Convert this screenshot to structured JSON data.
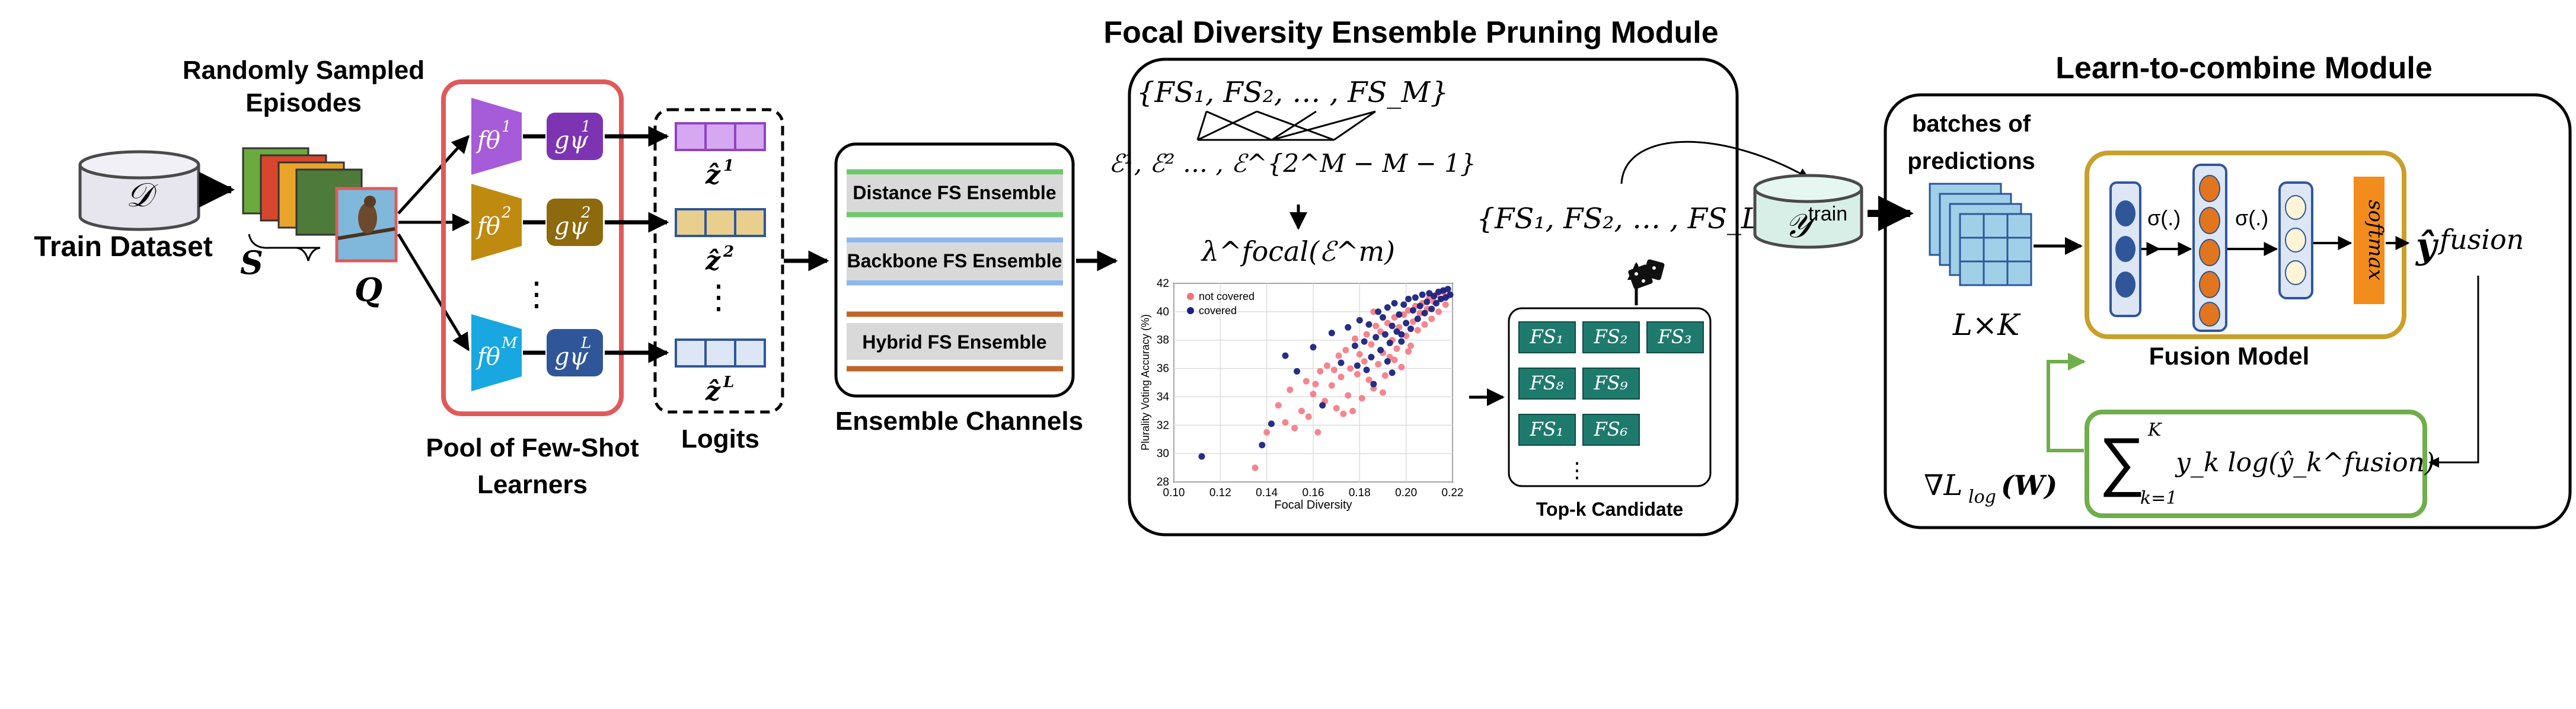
{
  "colors": {
    "red_border": "#E05A5A",
    "purple": "#A65BD9",
    "purple_dark": "#7D34B3",
    "gold": "#BF8A10",
    "gold_dark": "#8E6A0E",
    "cyan": "#18A7E0",
    "blue_dark": "#2F5699",
    "teal_box": "#1F7A6E",
    "orange": "#F28C1C",
    "fusion_border": "#C8A02A",
    "green_border": "#6FAE4A",
    "db_fill": "#E7E6EE",
    "ytrain_fill": "#D7EFE7",
    "pred_fill": "#9FD0E8"
  },
  "dataset": {
    "symbol": "𝒟",
    "label": "Train Dataset"
  },
  "episodes": {
    "title_line1": "Randomly Sampled",
    "title_line2": "Episodes",
    "support_label": "S",
    "query_label": "Q"
  },
  "learners": {
    "label_line1": "Pool of Few-Shot",
    "label_line2": "Learners",
    "items": [
      {
        "f": "fθ",
        "sup": "1",
        "g": "gψ",
        "gsup": "1",
        "f_color": "purple",
        "g_color": "purple_dark"
      },
      {
        "f": "fθ",
        "sup": "2",
        "g": "gψ",
        "gsup": "2",
        "f_color": "gold",
        "g_color": "gold_dark"
      },
      {
        "f": "fθ",
        "sup": "M",
        "g": "gψ",
        "gsup": "L",
        "f_color": "cyan",
        "g_color": "blue_dark"
      }
    ],
    "ellipsis": "⋮"
  },
  "logits": {
    "label": "Logits",
    "items": [
      {
        "name": "ẑ",
        "sup": "1",
        "fill": "#D7A8F2",
        "stroke": "#8E44C2"
      },
      {
        "name": "ẑ",
        "sup": "2",
        "fill": "#E8CF8E",
        "stroke": "#2F5699"
      },
      {
        "name": "ẑ",
        "sup": "L",
        "fill": "#DCE6F4",
        "stroke": "#2F5699"
      }
    ],
    "ellipsis": "⋮"
  },
  "channels": {
    "label": "Ensemble Channels",
    "items": [
      {
        "label": "Distance FS Ensemble",
        "line": "#6FC66F"
      },
      {
        "label": "Backbone FS Ensemble",
        "line": "#8FB8E8"
      },
      {
        "label": "Hybrid FS Ensemble",
        "line": "#C0652A"
      }
    ]
  },
  "pruning": {
    "title": "Focal Diversity Ensemble Pruning Module",
    "fs_set": "{FS₁, FS₂, … , FS_M}",
    "ensembles": "ℰ¹, ℰ² … , ℰ^{2^M − M − 1}",
    "focal": "λ^focal(ℰ^m)",
    "pruned_set": "{FS₁, FS₂, … , FS_L}",
    "topk_label": "Top-k Candidate",
    "topk_rows": [
      [
        "FS₁",
        "FS₂",
        "FS₃"
      ],
      [
        "FS₈",
        "FS₉"
      ],
      [
        "FS₁",
        "FS₆"
      ]
    ],
    "topk_ellipsis": "⋮"
  },
  "chart_data": {
    "type": "scatter",
    "xlabel": "Focal Diversity",
    "ylabel": "Plurality Voting Accuracy (%)",
    "xlim": [
      0.1,
      0.22
    ],
    "ylim": [
      28,
      42
    ],
    "xticks": [
      "0.10",
      "0.12",
      "0.14",
      "0.16",
      "0.18",
      "0.20",
      "0.22"
    ],
    "yticks": [
      "28",
      "30",
      "32",
      "34",
      "36",
      "38",
      "40",
      "42"
    ],
    "grid": true,
    "legend_position": "top-left",
    "series": [
      {
        "name": "not covered",
        "color": "#F4707A",
        "points": [
          [
            0.135,
            29.0
          ],
          [
            0.14,
            31.5
          ],
          [
            0.145,
            33.4
          ],
          [
            0.148,
            32.2
          ],
          [
            0.15,
            34.5
          ],
          [
            0.152,
            31.8
          ],
          [
            0.155,
            33.0
          ],
          [
            0.157,
            35.1
          ],
          [
            0.158,
            32.6
          ],
          [
            0.16,
            34.2
          ],
          [
            0.162,
            31.5
          ],
          [
            0.163,
            35.8
          ],
          [
            0.165,
            33.7
          ],
          [
            0.166,
            36.2
          ],
          [
            0.168,
            34.8
          ],
          [
            0.17,
            33.2
          ],
          [
            0.171,
            36.9
          ],
          [
            0.172,
            35.4
          ],
          [
            0.174,
            37.3
          ],
          [
            0.175,
            34.1
          ],
          [
            0.176,
            36.0
          ],
          [
            0.178,
            38.1
          ],
          [
            0.179,
            35.6
          ],
          [
            0.18,
            37.0
          ],
          [
            0.181,
            33.9
          ],
          [
            0.182,
            36.5
          ],
          [
            0.183,
            38.4
          ],
          [
            0.184,
            35.2
          ],
          [
            0.185,
            37.7
          ],
          [
            0.186,
            34.6
          ],
          [
            0.187,
            39.0
          ],
          [
            0.188,
            36.3
          ],
          [
            0.189,
            38.6
          ],
          [
            0.19,
            37.1
          ],
          [
            0.191,
            35.5
          ],
          [
            0.192,
            39.2
          ],
          [
            0.193,
            36.8
          ],
          [
            0.194,
            38.0
          ],
          [
            0.195,
            39.6
          ],
          [
            0.196,
            37.4
          ],
          [
            0.197,
            38.9
          ],
          [
            0.198,
            36.1
          ],
          [
            0.199,
            39.8
          ],
          [
            0.2,
            38.3
          ],
          [
            0.201,
            40.1
          ],
          [
            0.202,
            37.6
          ],
          [
            0.203,
            39.3
          ],
          [
            0.204,
            40.4
          ],
          [
            0.205,
            38.7
          ],
          [
            0.206,
            39.9
          ],
          [
            0.207,
            40.6
          ],
          [
            0.208,
            39.1
          ],
          [
            0.209,
            40.2
          ],
          [
            0.21,
            41.0
          ],
          [
            0.211,
            39.5
          ],
          [
            0.212,
            40.7
          ],
          [
            0.213,
            41.2
          ],
          [
            0.214,
            40.0
          ],
          [
            0.215,
            40.9
          ],
          [
            0.216,
            41.4
          ],
          [
            0.217,
            40.5
          ],
          [
            0.218,
            41.1
          ],
          [
            0.177,
            33.0
          ],
          [
            0.169,
            35.9
          ],
          [
            0.161,
            34.9
          ],
          [
            0.173,
            32.8
          ],
          [
            0.186,
            40.0
          ],
          [
            0.19,
            34.3
          ],
          [
            0.195,
            36.6
          ],
          [
            0.201,
            37.2
          ]
        ]
      },
      {
        "name": "covered",
        "color": "#1A237E",
        "points": [
          [
            0.112,
            29.8
          ],
          [
            0.138,
            30.6
          ],
          [
            0.142,
            32.1
          ],
          [
            0.148,
            36.9
          ],
          [
            0.153,
            35.8
          ],
          [
            0.16,
            37.5
          ],
          [
            0.164,
            33.4
          ],
          [
            0.168,
            38.5
          ],
          [
            0.172,
            36.4
          ],
          [
            0.175,
            38.9
          ],
          [
            0.178,
            37.6
          ],
          [
            0.18,
            39.4
          ],
          [
            0.182,
            37.9
          ],
          [
            0.184,
            39.1
          ],
          [
            0.185,
            36.8
          ],
          [
            0.187,
            38.2
          ],
          [
            0.188,
            40.0
          ],
          [
            0.189,
            37.3
          ],
          [
            0.19,
            39.6
          ],
          [
            0.191,
            38.4
          ],
          [
            0.192,
            40.3
          ],
          [
            0.193,
            37.8
          ],
          [
            0.194,
            39.0
          ],
          [
            0.195,
            40.6
          ],
          [
            0.196,
            38.6
          ],
          [
            0.197,
            39.8
          ],
          [
            0.198,
            37.9
          ],
          [
            0.199,
            40.5
          ],
          [
            0.2,
            39.2
          ],
          [
            0.201,
            40.9
          ],
          [
            0.202,
            38.8
          ],
          [
            0.203,
            40.1
          ],
          [
            0.204,
            41.0
          ],
          [
            0.205,
            39.5
          ],
          [
            0.206,
            40.4
          ],
          [
            0.207,
            41.2
          ],
          [
            0.208,
            39.9
          ],
          [
            0.209,
            40.7
          ],
          [
            0.21,
            41.3
          ],
          [
            0.211,
            40.2
          ],
          [
            0.212,
            41.1
          ],
          [
            0.213,
            40.6
          ],
          [
            0.214,
            41.4
          ],
          [
            0.215,
            40.9
          ],
          [
            0.216,
            41.5
          ],
          [
            0.217,
            41.0
          ],
          [
            0.218,
            41.6
          ],
          [
            0.219,
            41.2
          ],
          [
            0.183,
            35.9
          ],
          [
            0.179,
            36.2
          ],
          [
            0.186,
            34.9
          ],
          [
            0.192,
            36.5
          ],
          [
            0.198,
            38.4
          ],
          [
            0.194,
            35.7
          ]
        ]
      }
    ]
  },
  "ytrain": {
    "label": "𝒴",
    "sup": "train"
  },
  "combine": {
    "title": "Learn-to-combine Module",
    "batches_line1": "batches of",
    "batches_line2": "predictions",
    "dims": "L×K",
    "sigma1": "σ(.)",
    "sigma2": "σ(.)",
    "softmax": "softmax",
    "fusion_label": "Fusion Model",
    "output": "ŷ",
    "output_sup": "fusion",
    "loss_sum_top": "K",
    "loss_sum_bottom": "k=1",
    "loss_body": "y_k log(ŷ_k^fusion)",
    "grad": "∇L",
    "grad_sub": "log",
    "grad_arg": "(W)"
  }
}
